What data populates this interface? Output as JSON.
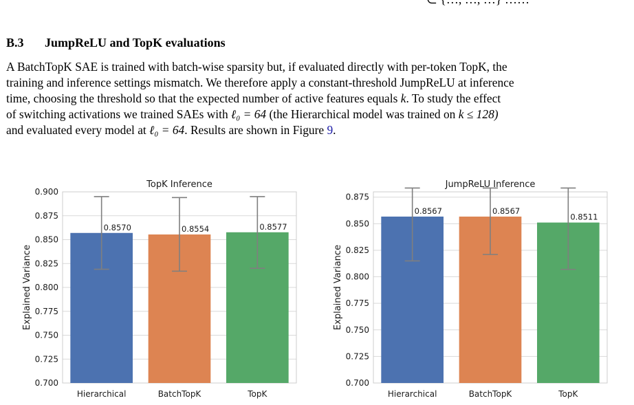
{
  "page": {
    "top_fragment": "∈ {…, …, …} ……",
    "section_number": "B.3",
    "section_title": "JumpReLU and TopK evaluations",
    "lines": [
      "A BatchTopK SAE is trained with batch-wise sparsity but, if evaluated directly with per-token TopK, the",
      "training and inference settings mismatch. We therefore apply a constant-threshold JumpReLU at inference",
      "time, choosing the threshold so that the expected number of active features equals",
      "of switching activations we trained SAEs with",
      "and evaluated every model at"
    ],
    "line3_var": "k",
    "line3_end": ". To study the effect",
    "line4_math": "ℓ₀ = 64",
    "line4_rest": " (the Hierarchical model was trained on ",
    "line4_math2": "k ≤ 128)",
    "line5_math": "ℓ₀ = 64",
    "line5_rest": ". Results are shown in Figure ",
    "figure_ref": "9",
    "line5_end": "."
  },
  "chart_data": [
    {
      "type": "bar",
      "title": "TopK Inference",
      "ylabel": "Explained Variance",
      "categories": [
        "Hierarchical",
        "BatchTopK",
        "TopK"
      ],
      "values": [
        0.857,
        0.8554,
        0.8577
      ],
      "value_labels": [
        "0.8570",
        "0.8554",
        "0.8577"
      ],
      "error_low": [
        0.819,
        0.817,
        0.82
      ],
      "error_high": [
        0.895,
        0.894,
        0.895
      ],
      "colors": [
        "#4c72b0",
        "#dd8452",
        "#55a868"
      ],
      "ylim": [
        0.7,
        0.9
      ],
      "yticks": [
        0.7,
        0.725,
        0.75,
        0.775,
        0.8,
        0.825,
        0.85,
        0.875,
        0.9
      ],
      "ytick_labels": [
        "0.700",
        "0.725",
        "0.750",
        "0.775",
        "0.800",
        "0.825",
        "0.850",
        "0.875",
        "0.900"
      ],
      "grid": true
    },
    {
      "type": "bar",
      "title": "JumpReLU Inference",
      "ylabel": "Explained Variance",
      "categories": [
        "Hierarchical",
        "BatchTopK",
        "TopK"
      ],
      "values": [
        0.8567,
        0.8567,
        0.8511
      ],
      "value_labels": [
        "0.8567",
        "0.8567",
        "0.8511"
      ],
      "error_low": [
        0.815,
        0.821,
        0.807
      ],
      "error_high": [
        0.898,
        0.892,
        0.895
      ],
      "colors": [
        "#4c72b0",
        "#dd8452",
        "#55a868"
      ],
      "ylim": [
        0.7,
        0.88
      ],
      "yticks": [
        0.7,
        0.725,
        0.75,
        0.775,
        0.8,
        0.825,
        0.85,
        0.875
      ],
      "ytick_labels": [
        "0.700",
        "0.725",
        "0.750",
        "0.775",
        "0.800",
        "0.825",
        "0.850",
        "0.875"
      ],
      "grid": true
    }
  ]
}
